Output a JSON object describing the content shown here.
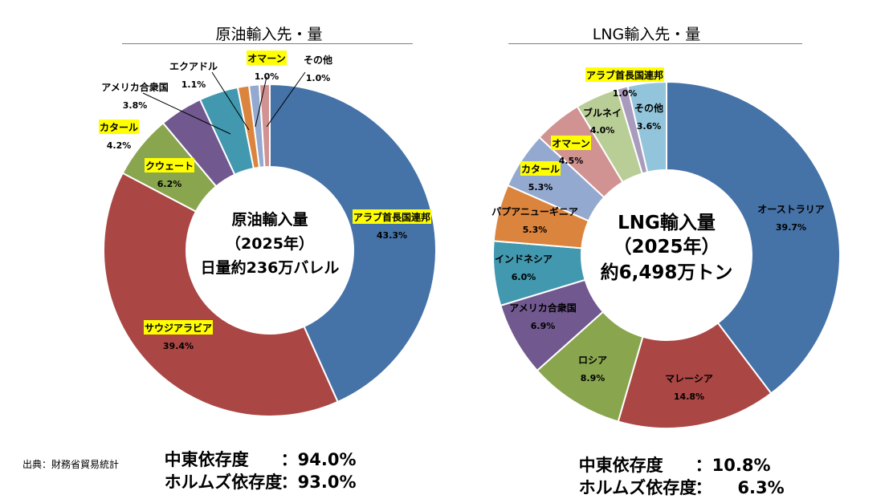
{
  "chart_data": [
    {
      "type": "pie",
      "variant": "donut",
      "title": "原油輸入先・量",
      "center_text": [
        "原油輸入量",
        "（2025年）",
        "日量約236万バレル"
      ],
      "slices": [
        {
          "label": "アラブ首長国連邦",
          "value": 43.3,
          "value_label": "43.3%",
          "color": "#4572A7",
          "highlight": true
        },
        {
          "label": "サウジアラビア",
          "value": 39.4,
          "value_label": "39.4%",
          "color": "#AA4643",
          "highlight": true
        },
        {
          "label": "クウェート",
          "value": 6.2,
          "value_label": "6.2%",
          "color": "#89A54E",
          "highlight": true
        },
        {
          "label": "カタール",
          "value": 4.2,
          "value_label": "4.2%",
          "color": "#71588F",
          "highlight": true
        },
        {
          "label": "アメリカ合衆国",
          "value": 3.8,
          "value_label": "3.8%",
          "color": "#4198AF",
          "highlight": false
        },
        {
          "label": "エクアドル",
          "value": 1.1,
          "value_label": "1.1%",
          "color": "#DB843D",
          "highlight": false
        },
        {
          "label": "オマーン",
          "value": 1.0,
          "value_label": "1.0%",
          "color": "#93A9CF",
          "highlight": true
        },
        {
          "label": "その他",
          "value": 1.0,
          "value_label": "1.0%",
          "color": "#D19392",
          "highlight": false
        }
      ],
      "stats": [
        {
          "label": "中東依存度",
          "value": "94.0%"
        },
        {
          "label": "ホルムズ依存度",
          "value": "93.0%"
        }
      ]
    },
    {
      "type": "pie",
      "variant": "donut",
      "title": "LNG輸入先・量",
      "center_text": [
        "LNG輸入量",
        "（2025年）",
        "約6,498万トン"
      ],
      "slices": [
        {
          "label": "オーストラリア",
          "value": 39.7,
          "value_label": "39.7%",
          "color": "#4572A7",
          "highlight": false
        },
        {
          "label": "マレーシア",
          "value": 14.8,
          "value_label": "14.8%",
          "color": "#AA4643",
          "highlight": false
        },
        {
          "label": "ロシア",
          "value": 8.9,
          "value_label": "8.9%",
          "color": "#89A54E",
          "highlight": false
        },
        {
          "label": "アメリカ合衆国",
          "value": 6.9,
          "value_label": "6.9%",
          "color": "#71588F",
          "highlight": false
        },
        {
          "label": "インドネシア",
          "value": 6.0,
          "value_label": "6.0%",
          "color": "#4198AF",
          "highlight": false
        },
        {
          "label": "パプアニューギニア",
          "value": 5.3,
          "value_label": "5.3%",
          "color": "#DB843D",
          "highlight": false
        },
        {
          "label": "カタール",
          "value": 5.3,
          "value_label": "5.3%",
          "color": "#93A9CF",
          "highlight": true
        },
        {
          "label": "オマーン",
          "value": 4.5,
          "value_label": "4.5%",
          "color": "#D19392",
          "highlight": true
        },
        {
          "label": "ブルネイ",
          "value": 4.0,
          "value_label": "4.0%",
          "color": "#B9CD96",
          "highlight": false
        },
        {
          "label": "アラブ首長国連邦",
          "value": 1.0,
          "value_label": "1.0%",
          "color": "#A99BBD",
          "highlight": true
        },
        {
          "label": "その他",
          "value": 3.6,
          "value_label": "3.6%",
          "color": "#92C5DB",
          "highlight": false
        }
      ],
      "stats": [
        {
          "label": "中東依存度",
          "value": "10.8%"
        },
        {
          "label": "ホルムズ依存度",
          "value": "6.3%"
        }
      ]
    }
  ],
  "source": "出典：財務省貿易統計",
  "highlight_color": "#FFFF00"
}
